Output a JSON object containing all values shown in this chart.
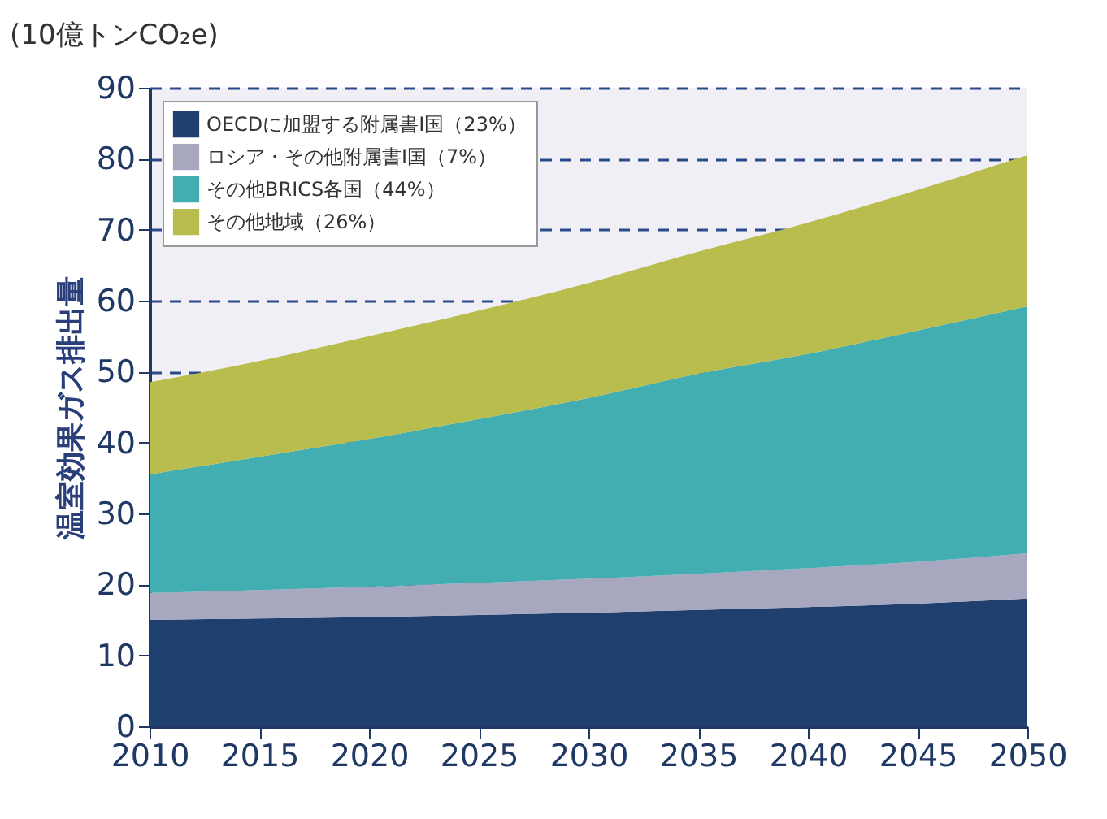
{
  "chart_data": {
    "type": "area",
    "stacked": true,
    "ylabel": "温室効果ガス排出量",
    "annotations": [
      "(10億トンCO₂e)"
    ],
    "x": [
      2010,
      2015,
      2020,
      2025,
      2030,
      2035,
      2040,
      2045,
      2050
    ],
    "series": [
      {
        "name": "OECDに加盟する附属書I国（23%）",
        "color": "#1f3f6e",
        "values": [
          15,
          15.2,
          15.4,
          15.7,
          16,
          16.4,
          16.8,
          17.3,
          18
        ]
      },
      {
        "name": "ロシア・その他附属書I国（7%）",
        "color": "#a7a7bf",
        "values": [
          3.8,
          4.0,
          4.3,
          4.5,
          4.8,
          5.1,
          5.5,
          5.9,
          6.4
        ]
      },
      {
        "name": "その他BRICS各国（44%）",
        "color": "#42aeb2",
        "values": [
          16.7,
          18.8,
          20.8,
          23.1,
          25.5,
          28.2,
          30.2,
          32.6,
          34.8
        ]
      },
      {
        "name": "その他地域（26%）",
        "color": "#b8bd4e",
        "values": [
          13,
          13.5,
          14.5,
          15.3,
          16.2,
          17.2,
          18.5,
          19.8,
          21.3
        ]
      }
    ],
    "xlim": [
      2010,
      2050
    ],
    "xticks": [
      2010,
      2015,
      2020,
      2025,
      2030,
      2035,
      2040,
      2045,
      2050
    ],
    "ylim": [
      0,
      90
    ],
    "yticks": [
      0,
      10,
      20,
      30,
      40,
      50,
      60,
      70,
      80,
      90
    ],
    "grid": "y",
    "legend": "top left"
  }
}
